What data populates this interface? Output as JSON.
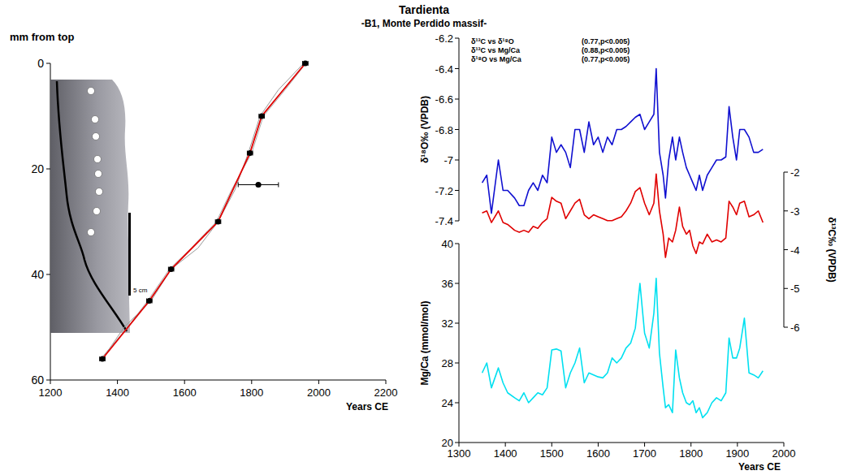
{
  "chart_data": [
    {
      "type": "line",
      "title": "Tardienta",
      "subtitle": "-B1, Monte Perdido massif-",
      "ylabel": "mm from top",
      "xlabel": "Years CE",
      "scale_label": "5 cm",
      "xlim": [
        1200,
        2200
      ],
      "xticks": [
        1200,
        1400,
        1600,
        1800,
        2000,
        2200
      ],
      "ylim": [
        0,
        60
      ],
      "yticks": [
        0,
        20,
        40,
        60
      ],
      "series": [
        {
          "type": "line",
          "color": "#999999",
          "x": [
            1955,
            1880,
            1825,
            1790,
            1750,
            1700,
            1640,
            1560,
            1500,
            1420,
            1355
          ],
          "values": [
            0,
            5,
            10,
            17,
            24,
            30,
            35,
            39,
            45,
            50,
            56
          ]
        },
        {
          "type": "line",
          "color": "#aaaaaa",
          "x": [
            1962,
            1900,
            1835,
            1800,
            1740,
            1695,
            1620,
            1555,
            1490,
            1430,
            1350
          ],
          "values": [
            0,
            5,
            10,
            17,
            24,
            30,
            35,
            39,
            45,
            50,
            56
          ]
        },
        {
          "type": "line",
          "color": "#e00000",
          "x": [
            1960,
            1830,
            1795,
            1700,
            1560,
            1495,
            1355
          ],
          "values": [
            0,
            10,
            17,
            30,
            39,
            45,
            56
          ]
        },
        {
          "type": "scatter",
          "color": "#000000",
          "marker": "circle",
          "x": [
            1960,
            1830,
            1795,
            1820,
            1700,
            1560,
            1495,
            1355
          ],
          "values": [
            0,
            10,
            17,
            23,
            30,
            39,
            45,
            56
          ],
          "x_error": [
            8,
            8,
            8,
            60,
            8,
            8,
            8,
            8
          ]
        }
      ]
    },
    {
      "type": "line",
      "annotations": [
        {
          "text": "δ¹³C vs δ¹⁸O",
          "stat": "(0.77,p<0.005)"
        },
        {
          "text": "δ¹³C vs Mg/Ca",
          "stat": "(0.88,p<0.005)"
        },
        {
          "text": "δ¹⁸O vs Mg/Ca",
          "stat": "(0.77,p<0.005)"
        }
      ],
      "ylabel": "δ¹⁸O‰ (VPDB)",
      "y2label": "δ¹³C‰ (VPDB)",
      "xlim": [
        1300,
        2000
      ],
      "ylim": [
        -7.4,
        -6.2
      ],
      "yticks": [
        -7.4,
        -7.2,
        -7,
        -6.8,
        -6.6,
        -6.4,
        -6.2
      ],
      "y2lim": [
        -6,
        -2
      ],
      "y2ticks": [
        -6,
        -5,
        -4,
        -3,
        -2
      ],
      "x": [
        1350,
        1360,
        1370,
        1385,
        1395,
        1405,
        1420,
        1430,
        1440,
        1450,
        1460,
        1470,
        1480,
        1490,
        1500,
        1510,
        1520,
        1530,
        1540,
        1550,
        1560,
        1570,
        1580,
        1590,
        1600,
        1610,
        1620,
        1630,
        1640,
        1650,
        1660,
        1670,
        1680,
        1690,
        1700,
        1710,
        1720,
        1725,
        1732,
        1740,
        1745,
        1752,
        1760,
        1767,
        1775,
        1782,
        1790,
        1797,
        1804,
        1811,
        1818,
        1825,
        1835,
        1845,
        1855,
        1865,
        1875,
        1882,
        1890,
        1898,
        1905,
        1915,
        1925,
        1935,
        1945,
        1955
      ],
      "series": [
        {
          "color": "#1010d0",
          "values": [
            -7.15,
            -7.1,
            -7.35,
            -7.0,
            -7.2,
            -7.2,
            -7.25,
            -7.3,
            -7.3,
            -7.2,
            -7.15,
            -7.2,
            -7.1,
            -7.15,
            -6.85,
            -6.95,
            -6.9,
            -6.95,
            -7.05,
            -6.8,
            -6.8,
            -6.95,
            -6.75,
            -6.9,
            -6.85,
            -6.95,
            -6.85,
            -6.9,
            -6.8,
            -6.8,
            -6.78,
            -6.75,
            -6.72,
            -6.7,
            -6.8,
            -6.75,
            -6.7,
            -6.4,
            -6.95,
            -7.1,
            -7.25,
            -7.0,
            -6.85,
            -7.0,
            -6.85,
            -6.95,
            -7.05,
            -7.1,
            -7.15,
            -7.2,
            -7.1,
            -7.2,
            -7.1,
            -7.05,
            -7.0,
            -7.0,
            -6.98,
            -6.65,
            -6.85,
            -7.0,
            -6.8,
            -6.8,
            -6.85,
            -6.95,
            -6.95,
            -6.93
          ]
        },
        {
          "color": "#e00000",
          "axis": "y2",
          "values": [
            -3.05,
            -3.0,
            -3.3,
            -3.0,
            -3.3,
            -3.35,
            -3.5,
            -3.55,
            -3.5,
            -3.55,
            -3.4,
            -3.45,
            -3.3,
            -3.2,
            -2.65,
            -2.75,
            -2.8,
            -3.2,
            -3.0,
            -2.8,
            -2.7,
            -3.1,
            -3.2,
            -3.1,
            -3.15,
            -3.2,
            -3.25,
            -3.25,
            -3.2,
            -3.15,
            -3.0,
            -2.8,
            -2.5,
            -2.4,
            -2.8,
            -3.1,
            -2.8,
            -2.05,
            -3.0,
            -3.6,
            -4.2,
            -3.7,
            -3.8,
            -3.5,
            -2.9,
            -3.4,
            -3.6,
            -3.5,
            -3.9,
            -4.1,
            -3.8,
            -3.85,
            -3.6,
            -3.8,
            -3.75,
            -3.8,
            -3.7,
            -2.75,
            -2.9,
            -3.1,
            -2.8,
            -2.75,
            -3.15,
            -3.1,
            -3.0,
            -3.3
          ]
        }
      ]
    },
    {
      "type": "line",
      "ylabel": "Mg/Ca (mmol/mol)",
      "xlabel": "Years CE",
      "xlim": [
        1300,
        2000
      ],
      "xticks": [
        1300,
        1400,
        1500,
        1600,
        1700,
        1800,
        1900,
        2000
      ],
      "ylim": [
        20,
        40
      ],
      "yticks": [
        20,
        24,
        28,
        32,
        36,
        40
      ],
      "x": [
        1350,
        1360,
        1370,
        1385,
        1395,
        1405,
        1420,
        1430,
        1440,
        1450,
        1460,
        1470,
        1480,
        1490,
        1500,
        1510,
        1520,
        1530,
        1540,
        1550,
        1560,
        1570,
        1580,
        1590,
        1600,
        1610,
        1620,
        1630,
        1640,
        1650,
        1660,
        1670,
        1680,
        1690,
        1700,
        1710,
        1720,
        1725,
        1732,
        1740,
        1745,
        1752,
        1760,
        1767,
        1775,
        1782,
        1790,
        1797,
        1804,
        1811,
        1818,
        1825,
        1835,
        1845,
        1855,
        1865,
        1875,
        1882,
        1890,
        1898,
        1905,
        1915,
        1925,
        1935,
        1945,
        1955
      ],
      "series": [
        {
          "color": "#00e0f0",
          "values": [
            27,
            28,
            25.5,
            27.5,
            26,
            25,
            24.5,
            24.2,
            25,
            24,
            24.5,
            25,
            24.8,
            25.5,
            29.3,
            29.4,
            29.2,
            25.5,
            27,
            28,
            29.5,
            26,
            27,
            26.8,
            26.6,
            26.5,
            27,
            28.5,
            28,
            28.5,
            29.5,
            30,
            31.5,
            36,
            31,
            29.5,
            33,
            36.5,
            29,
            25.5,
            23.5,
            23.8,
            23,
            29.3,
            26.5,
            25,
            24,
            23.8,
            24.2,
            23,
            23.5,
            22.5,
            23,
            24,
            24.5,
            24.2,
            25,
            30.5,
            28.5,
            28.5,
            29.5,
            32.5,
            27,
            26.8,
            26.5,
            27.2
          ]
        }
      ]
    }
  ]
}
